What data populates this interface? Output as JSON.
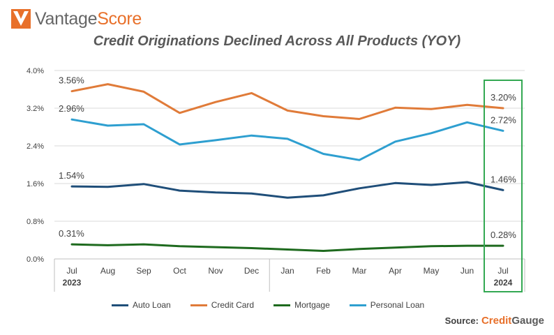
{
  "brand": {
    "logo_left": "Vantage",
    "logo_right": "Score"
  },
  "title": "Credit Originations Declined Across All Products (YOY)",
  "source": {
    "label": "Source:",
    "brand_left": "Credit",
    "brand_right": "Gauge"
  },
  "colors": {
    "auto": "#1f4e79",
    "credit": "#e07b39",
    "mortgage": "#1e6a1e",
    "personal": "#2e9fd0",
    "highlight": "#33a852",
    "logo": "#e8702a"
  },
  "chart_data": {
    "type": "line",
    "categories": [
      "Jul",
      "Aug",
      "Sep",
      "Oct",
      "Nov",
      "Dec",
      "Jan",
      "Feb",
      "Mar",
      "Apr",
      "May",
      "Jun",
      "Jul"
    ],
    "year_labels": [
      {
        "label": "2023",
        "index": 0
      },
      {
        "label": "2024",
        "index": 12
      }
    ],
    "ylim": [
      0,
      4.0
    ],
    "yticks": [
      "0.0%",
      "0.8%",
      "1.6%",
      "2.4%",
      "3.2%",
      "4.0%"
    ],
    "ytick_values": [
      0,
      0.8,
      1.6,
      2.4,
      3.2,
      4.0
    ],
    "grid": true,
    "legend_position": "bottom",
    "highlight_index": 12,
    "series": [
      {
        "key": "auto",
        "name": "Auto Loan",
        "color": "#1f4e79",
        "values": [
          1.54,
          1.53,
          1.59,
          1.45,
          1.41,
          1.39,
          1.3,
          1.35,
          1.5,
          1.61,
          1.57,
          1.63,
          1.46
        ],
        "start_label": "1.54%",
        "end_label": "1.46%"
      },
      {
        "key": "credit",
        "name": "Credit Card",
        "color": "#e07b39",
        "values": [
          3.56,
          3.71,
          3.55,
          3.1,
          3.33,
          3.52,
          3.15,
          3.03,
          2.97,
          3.21,
          3.18,
          3.27,
          3.2
        ],
        "start_label": "3.56%",
        "end_label": "3.20%"
      },
      {
        "key": "mortgage",
        "name": "Mortgage",
        "color": "#1e6a1e",
        "values": [
          0.31,
          0.29,
          0.31,
          0.27,
          0.25,
          0.23,
          0.2,
          0.17,
          0.21,
          0.24,
          0.27,
          0.28,
          0.28
        ],
        "start_label": "0.31%",
        "end_label": "0.28%"
      },
      {
        "key": "personal",
        "name": "Personal Loan",
        "color": "#2e9fd0",
        "values": [
          2.96,
          2.83,
          2.86,
          2.43,
          2.52,
          2.62,
          2.55,
          2.23,
          2.1,
          2.49,
          2.67,
          2.9,
          2.72
        ],
        "start_label": "2.96%",
        "end_label": "2.72%"
      }
    ]
  }
}
